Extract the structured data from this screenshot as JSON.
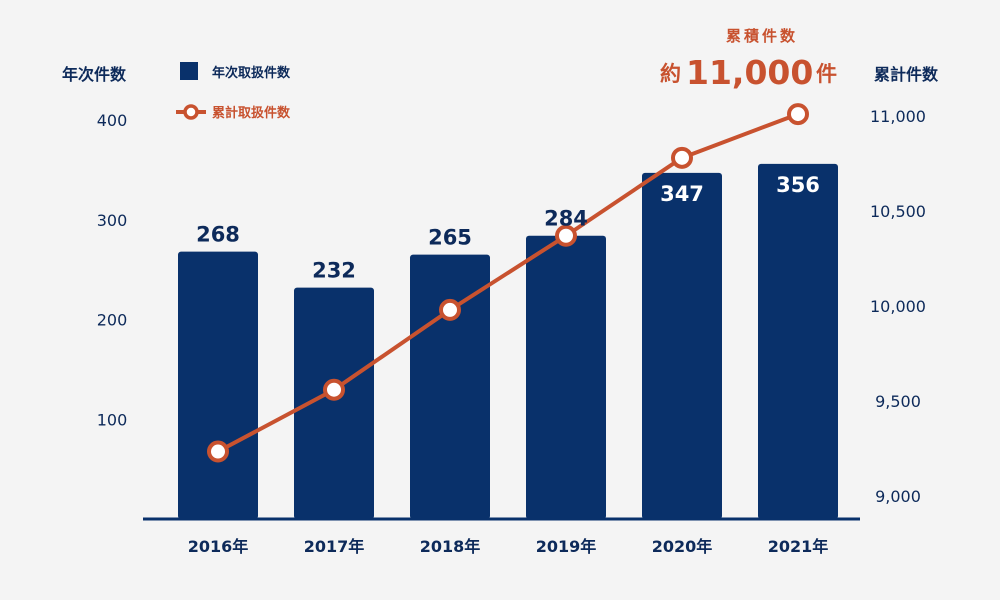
{
  "colors": {
    "bar": "#09316b",
    "line": "#c8522f",
    "axis_text": "#0d2a5a",
    "background": "#f4f4f4",
    "bar_label_outside": "#0d2a5a",
    "bar_label_inside": "#ffffff"
  },
  "chart_data": {
    "type": "bar",
    "categories": [
      "2016年",
      "2017年",
      "2018年",
      "2019年",
      "2020年",
      "2021年"
    ],
    "series": [
      {
        "name": "年次取扱件数",
        "type": "bar",
        "axis": "left",
        "values": [
          268,
          232,
          265,
          284,
          347,
          356
        ],
        "labels": [
          "268",
          "232",
          "265",
          "284",
          "347",
          "356"
        ]
      },
      {
        "name": "累計取扱件数",
        "type": "line",
        "axis": "right",
        "values": [
          9235,
          9560,
          9980,
          10370,
          10780,
          11010
        ]
      }
    ],
    "y_left": {
      "label": "年次件数",
      "ylim": [
        0,
        400
      ],
      "ticks": [
        100,
        200,
        300,
        400
      ],
      "tick_labels": [
        "100",
        "200",
        "300",
        "400"
      ]
    },
    "y_right": {
      "label": "累計件数",
      "ylim": [
        8880,
        11000
      ],
      "ticks": [
        9000,
        9500,
        10000,
        10500,
        11000
      ],
      "tick_labels": [
        "9,000",
        "9,500",
        "10,000",
        "10,500",
        "11,000"
      ]
    },
    "legend": {
      "placement": "top-left",
      "entries": [
        "年次取扱件数",
        "累計取扱件数"
      ]
    },
    "callout": {
      "heading": "累積件数",
      "prefix": "約",
      "value": "11,000",
      "suffix": "件"
    },
    "grid": false
  }
}
